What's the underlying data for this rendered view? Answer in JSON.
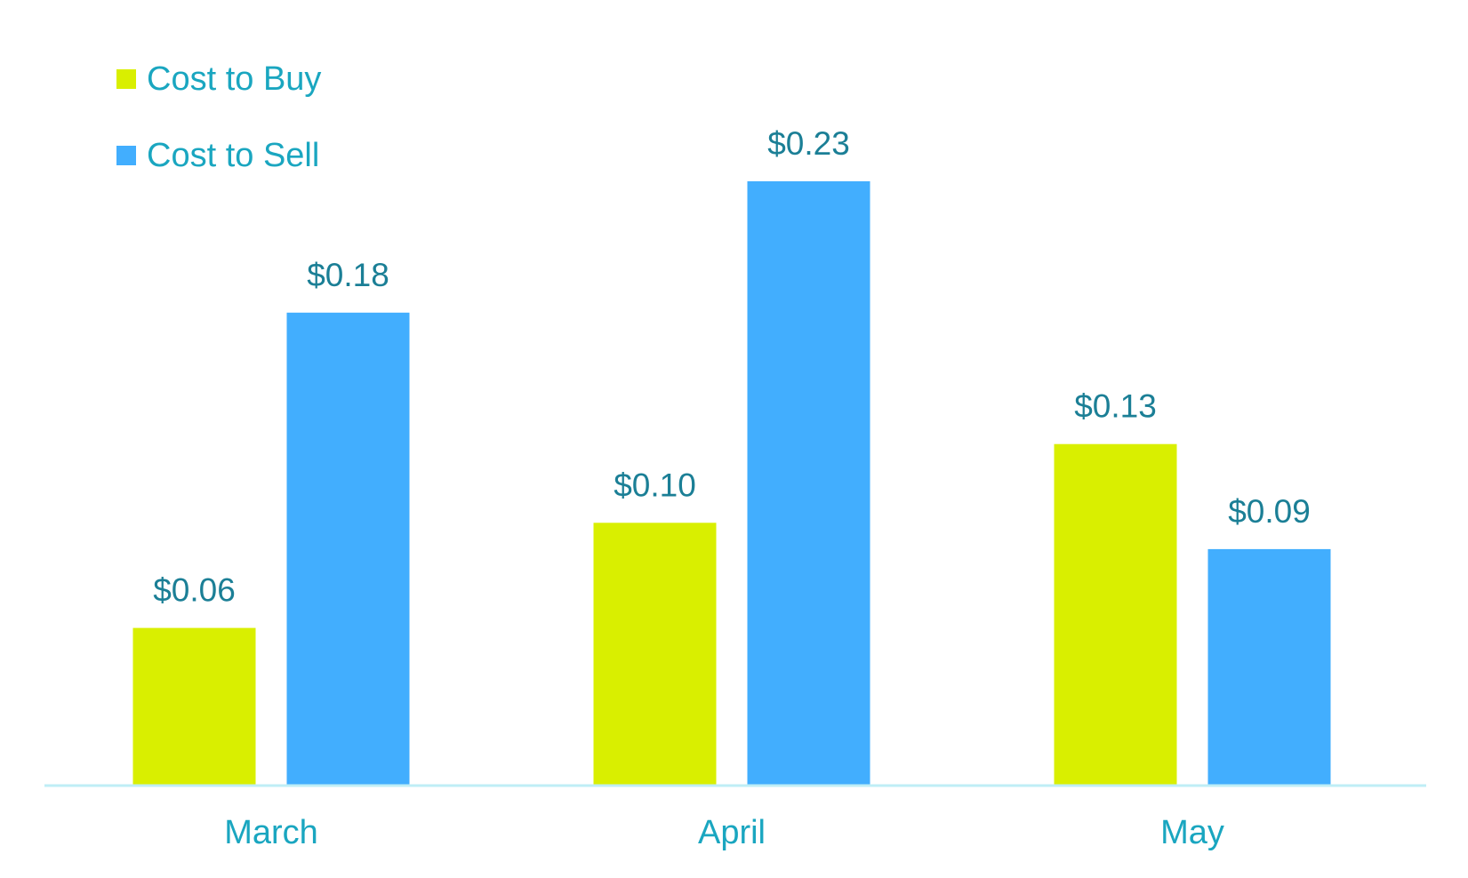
{
  "chart_data": {
    "type": "bar",
    "categories": [
      "March",
      "April",
      "May"
    ],
    "series": [
      {
        "name": "Cost to Buy",
        "values": [
          0.06,
          0.1,
          0.13
        ],
        "labels": [
          "$0.06",
          "$0.10",
          "$0.13"
        ],
        "color": "#d9ef00"
      },
      {
        "name": "Cost to Sell",
        "values": [
          0.18,
          0.23,
          0.09
        ],
        "labels": [
          "$0.18",
          "$0.23",
          "$0.09"
        ],
        "color": "#42aefe"
      }
    ],
    "ylim": [
      0,
      0.23
    ],
    "grid": false,
    "legend_position": "top-left",
    "baseline_color": "#bfeef6",
    "text_color": "#1aa6c0",
    "label_color": "#1b7f96"
  }
}
